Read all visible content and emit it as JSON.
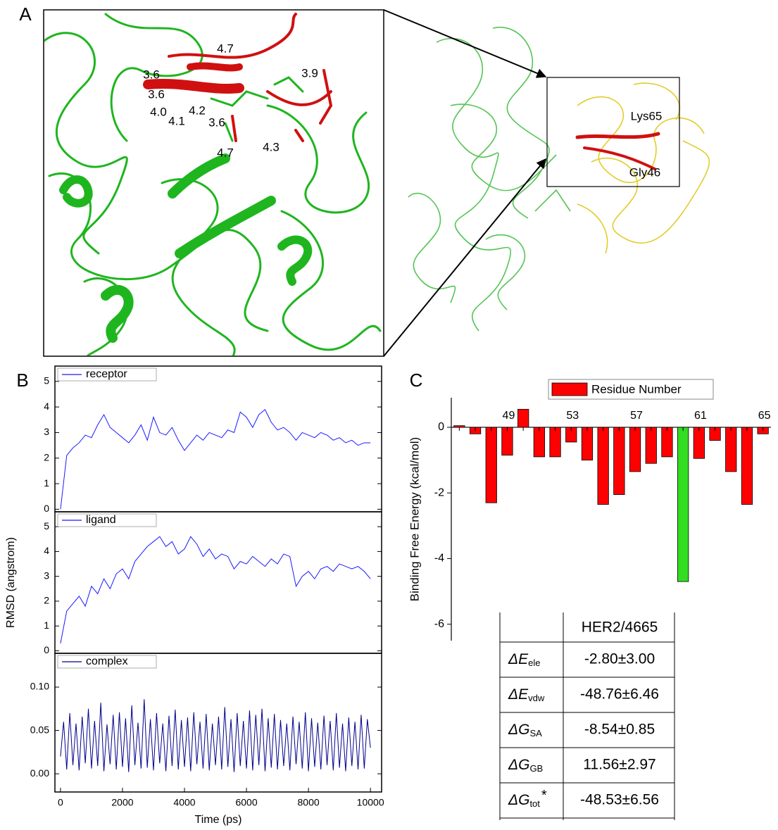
{
  "panels": {
    "a": "A",
    "b": "B",
    "c": "C"
  },
  "structure": {
    "distances": [
      "4.7",
      "3.6",
      "3.9",
      "3.6",
      "4.0",
      "4.2",
      "4.1",
      "3.6",
      "4.7",
      "4.3"
    ],
    "residues": [
      "Lys65",
      "Gly46"
    ]
  },
  "chart_data": [
    {
      "type": "line",
      "legend": "upper left",
      "x": [
        0,
        200,
        400,
        600,
        800,
        1000,
        1200,
        1400,
        1600,
        1800,
        2000,
        2200,
        2400,
        2600,
        2800,
        3000,
        3200,
        3400,
        3600,
        3800,
        4000,
        4200,
        4400,
        4600,
        4800,
        5000,
        5200,
        5400,
        5600,
        5800,
        6000,
        6200,
        6400,
        6600,
        6800,
        7000,
        7200,
        7400,
        7600,
        7800,
        8000,
        8200,
        8400,
        8600,
        8800,
        9000,
        9200,
        9400,
        9600,
        9800,
        10000
      ],
      "series": [
        {
          "name": "receptor",
          "color": "#1a1aff",
          "values": [
            0,
            2.1,
            2.4,
            2.6,
            2.9,
            2.8,
            3.3,
            3.7,
            3.2,
            3.0,
            2.8,
            2.6,
            2.9,
            3.3,
            2.7,
            3.6,
            3.0,
            2.9,
            3.2,
            2.7,
            2.3,
            2.6,
            2.9,
            2.7,
            3.0,
            2.9,
            2.8,
            3.1,
            3.0,
            3.8,
            3.6,
            3.2,
            3.7,
            3.9,
            3.4,
            3.1,
            3.2,
            3.0,
            2.7,
            3.0,
            2.9,
            2.8,
            3.0,
            2.9,
            2.7,
            2.8,
            2.6,
            2.7,
            2.5,
            2.6,
            2.6
          ]
        }
      ],
      "xlim": [
        -180,
        10360
      ],
      "ylim": [
        -0.1,
        5.6
      ],
      "yticks": [
        0,
        1,
        2,
        3,
        4,
        5
      ]
    },
    {
      "type": "line",
      "legend": "upper left",
      "ylabel": "RMSD (angstrom)",
      "x": [
        0,
        200,
        400,
        600,
        800,
        1000,
        1200,
        1400,
        1600,
        1800,
        2000,
        2200,
        2400,
        2600,
        2800,
        3000,
        3200,
        3400,
        3600,
        3800,
        4000,
        4200,
        4400,
        4600,
        4800,
        5000,
        5200,
        5400,
        5600,
        5800,
        6000,
        6200,
        6400,
        6600,
        6800,
        7000,
        7200,
        7400,
        7600,
        7800,
        8000,
        8200,
        8400,
        8600,
        8800,
        9000,
        9200,
        9400,
        9600,
        9800,
        10000
      ],
      "series": [
        {
          "name": "ligand",
          "color": "#1a1aff",
          "values": [
            0.3,
            1.6,
            1.9,
            2.2,
            1.8,
            2.6,
            2.3,
            2.9,
            2.5,
            3.1,
            3.3,
            2.9,
            3.6,
            3.9,
            4.2,
            4.4,
            4.6,
            4.2,
            4.4,
            3.9,
            4.1,
            4.6,
            4.3,
            3.8,
            4.1,
            3.7,
            3.9,
            3.8,
            3.3,
            3.6,
            3.5,
            3.8,
            3.6,
            3.4,
            3.7,
            3.5,
            3.9,
            3.8,
            2.6,
            3.0,
            3.2,
            2.9,
            3.3,
            3.4,
            3.2,
            3.5,
            3.4,
            3.3,
            3.4,
            3.2,
            2.9
          ]
        }
      ],
      "xlim": [
        -180,
        10360
      ],
      "ylim": [
        -0.1,
        5.6
      ],
      "yticks": [
        0,
        1,
        2,
        3,
        4,
        5
      ]
    },
    {
      "type": "line",
      "legend": "upper left",
      "xlabel": "Time (ps)",
      "x": [
        0,
        100,
        200,
        300,
        400,
        500,
        600,
        700,
        800,
        900,
        1000,
        1100,
        1200,
        1300,
        1400,
        1500,
        1600,
        1700,
        1800,
        1900,
        2000,
        2100,
        2200,
        2300,
        2400,
        2500,
        2600,
        2700,
        2800,
        2900,
        3000,
        3100,
        3200,
        3300,
        3400,
        3500,
        3600,
        3700,
        3800,
        3900,
        4000,
        4100,
        4200,
        4300,
        4400,
        4500,
        4600,
        4700,
        4800,
        4900,
        5000,
        5100,
        5200,
        5300,
        5400,
        5500,
        5600,
        5700,
        5800,
        5900,
        6000,
        6100,
        6200,
        6300,
        6400,
        6500,
        6600,
        6700,
        6800,
        6900,
        7000,
        7100,
        7200,
        7300,
        7400,
        7500,
        7600,
        7700,
        7800,
        7900,
        8000,
        8100,
        8200,
        8300,
        8400,
        8500,
        8600,
        8700,
        8800,
        8900,
        9000,
        9100,
        9200,
        9300,
        9400,
        9500,
        9600,
        9700,
        9800,
        9900,
        10000
      ],
      "series": [
        {
          "name": "complex",
          "color": "#00008b",
          "values": [
            0.02,
            0.06,
            0.005,
            0.07,
            0.01,
            0.058,
            0.004,
            0.066,
            0.012,
            0.075,
            0.006,
            0.061,
            0.009,
            0.082,
            0.003,
            0.057,
            0.011,
            0.068,
            0.005,
            0.071,
            0.008,
            0.064,
            0.002,
            0.079,
            0.01,
            0.059,
            0.006,
            0.086,
            0.007,
            0.063,
            0.004,
            0.07,
            0.012,
            0.058,
            0.003,
            0.067,
            0.009,
            0.074,
            0.005,
            0.062,
            0.008,
            0.065,
            0.003,
            0.071,
            0.011,
            0.06,
            0.006,
            0.069,
            0.004,
            0.058,
            0.01,
            0.066,
            0.005,
            0.077,
            0.008,
            0.063,
            0.002,
            0.07,
            0.009,
            0.061,
            0.006,
            0.073,
            0.004,
            0.068,
            0.01,
            0.075,
            0.003,
            0.064,
            0.007,
            0.069,
            0.005,
            0.062,
            0.009,
            0.058,
            0.004,
            0.066,
            0.011,
            0.06,
            0.006,
            0.071,
            0.003,
            0.064,
            0.008,
            0.059,
            0.005,
            0.067,
            0.01,
            0.061,
            0.004,
            0.07,
            0.007,
            0.058,
            0.003,
            0.065,
            0.009,
            0.06,
            0.005,
            0.068,
            0.006,
            0.063,
            0.03
          ]
        }
      ],
      "xlim": [
        -180,
        10360
      ],
      "ylim": [
        -0.021,
        0.139
      ],
      "xticks": [
        0,
        2000,
        4000,
        6000,
        8000,
        10000
      ],
      "yticks": [
        {
          "value": 0,
          "label": "0.00"
        },
        {
          "value": 0.05,
          "label": "0.05"
        },
        {
          "value": 0.1,
          "label": "0.10"
        }
      ]
    },
    {
      "type": "bar",
      "legend": "upper center",
      "ylabel": "Binding Free Energy (kcal/mol)",
      "categories": [
        null,
        null,
        null,
        "49",
        null,
        null,
        null,
        "53",
        null,
        null,
        null,
        "57",
        null,
        null,
        null,
        "61",
        null,
        null,
        null,
        "65"
      ],
      "series": [
        {
          "name": "Residue Number",
          "color": "#ff0000",
          "values": [
            0.05,
            -0.2,
            -2.3,
            -0.85,
            0.55,
            -0.9,
            -0.9,
            -0.45,
            -1.0,
            -2.35,
            -2.05,
            -1.35,
            -1.1,
            -0.9,
            -4.7,
            -0.95,
            -0.4,
            -1.35,
            -2.35,
            -0.2
          ]
        }
      ],
      "bar_colors": [
        "#ff0000",
        "#ff0000",
        "#ff0000",
        "#ff0000",
        "#ff0000",
        "#ff0000",
        "#ff0000",
        "#ff0000",
        "#ff0000",
        "#ff0000",
        "#ff0000",
        "#ff0000",
        "#ff0000",
        "#ff0000",
        "#33dd22",
        "#ff0000",
        "#ff0000",
        "#ff0000",
        "#ff0000",
        "#ff0000"
      ],
      "ylim": [
        -6.5,
        0.9
      ],
      "yticks": [
        -6,
        -4,
        -2,
        0
      ]
    }
  ],
  "table": {
    "column": "HER2/4665",
    "rows": [
      {
        "symbol": "ΔE",
        "subscript": "ele",
        "value": "-2.80±3.00"
      },
      {
        "symbol": "ΔE",
        "subscript": "vdw",
        "value": "-48.76±6.46"
      },
      {
        "symbol": "ΔG",
        "subscript": "SA",
        "value": "-8.54±0.85"
      },
      {
        "symbol": "ΔG",
        "subscript": "GB",
        "value": "11.56±2.97"
      },
      {
        "symbol": "ΔG",
        "subscript": "tot",
        "superscript": "*",
        "value": "-48.53±6.56"
      }
    ]
  }
}
